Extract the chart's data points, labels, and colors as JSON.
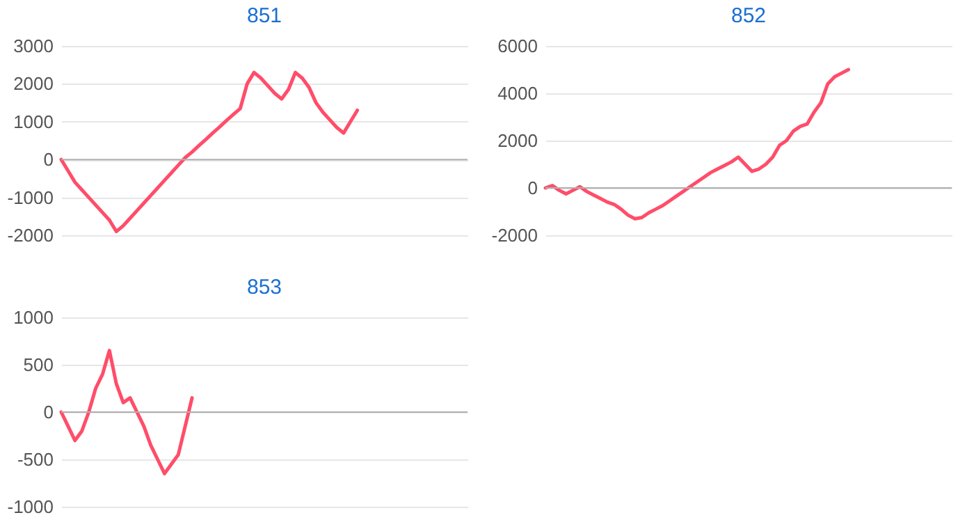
{
  "chart_data": [
    {
      "type": "line",
      "title": "851",
      "categories": [
        null,
        null,
        null,
        null,
        null,
        null,
        null,
        null,
        null,
        null,
        null,
        null,
        null,
        null,
        null,
        null,
        null,
        null,
        null,
        null,
        null,
        null,
        null,
        null,
        null,
        null,
        null,
        null,
        null,
        null,
        null,
        null,
        null,
        null,
        null,
        null,
        null,
        null,
        null,
        null,
        null,
        null,
        null,
        null,
        null,
        null,
        null,
        null,
        null,
        null,
        null,
        null,
        null,
        null,
        null,
        null,
        null,
        null,
        null,
        null
      ],
      "series": [
        {
          "color": "#ff4d6a",
          "values": [
            0,
            -300,
            -600,
            -800,
            -1000,
            -1200,
            -1400,
            -1600,
            -1900,
            -1750,
            -1550,
            -1350,
            -1150,
            -950,
            -750,
            -550,
            -350,
            -150,
            50,
            200,
            370,
            530,
            700,
            860,
            1030,
            1190,
            1350,
            2000,
            2300,
            2150,
            1950,
            1750,
            1600,
            1850,
            2300,
            2150,
            1900,
            1500,
            1250,
            1050,
            850,
            700,
            1000,
            1300,
            null,
            null,
            null,
            null,
            null,
            null,
            null,
            null,
            null,
            null,
            null,
            null,
            null,
            null,
            null,
            null
          ]
        }
      ],
      "ylim": [
        -2000,
        3000
      ],
      "yticks": [
        -2000,
        -1000,
        0,
        1000,
        2000,
        3000
      ],
      "grid": "y",
      "ref_lines": [
        {
          "axis": "y",
          "value": 0,
          "color": "#b0b0b0"
        }
      ],
      "tick_labels": "y",
      "marker": "none",
      "line_style": "solid"
    },
    {
      "type": "line",
      "title": "852",
      "categories": [
        null,
        null,
        null,
        null,
        null,
        null,
        null,
        null,
        null,
        null,
        null,
        null,
        null,
        null,
        null,
        null,
        null,
        null,
        null,
        null,
        null,
        null,
        null,
        null,
        null,
        null,
        null,
        null,
        null,
        null,
        null,
        null,
        null,
        null,
        null,
        null,
        null,
        null,
        null,
        null,
        null,
        null,
        null,
        null,
        null,
        null,
        null,
        null,
        null,
        null,
        null,
        null,
        null,
        null,
        null,
        null,
        null,
        null,
        null,
        null
      ],
      "series": [
        {
          "color": "#ff4d6a",
          "values": [
            0,
            100,
            -100,
            -250,
            -100,
            50,
            -150,
            -300,
            -450,
            -600,
            -700,
            -900,
            -1150,
            -1300,
            -1250,
            -1050,
            -900,
            -750,
            -550,
            -350,
            -150,
            50,
            250,
            450,
            650,
            800,
            950,
            1100,
            1300,
            1000,
            700,
            800,
            1000,
            1300,
            1800,
            2000,
            2400,
            2600,
            2700,
            3200,
            3600,
            4400,
            4700,
            4850,
            5000,
            null,
            null,
            null,
            null,
            null,
            null,
            null,
            null,
            null,
            null,
            null,
            null,
            null,
            null,
            null
          ]
        }
      ],
      "ylim": [
        -2000,
        6000
      ],
      "yticks": [
        -2000,
        0,
        2000,
        4000,
        6000
      ],
      "grid": "y",
      "ref_lines": [
        {
          "axis": "y",
          "value": 0,
          "color": "#b0b0b0"
        }
      ],
      "tick_labels": "y",
      "marker": "none",
      "line_style": "solid"
    },
    {
      "type": "line",
      "title": "853",
      "categories": [
        null,
        null,
        null,
        null,
        null,
        null,
        null,
        null,
        null,
        null,
        null,
        null,
        null,
        null,
        null,
        null,
        null,
        null,
        null,
        null,
        null,
        null,
        null,
        null,
        null,
        null,
        null,
        null,
        null,
        null,
        null,
        null,
        null,
        null,
        null,
        null,
        null,
        null,
        null,
        null,
        null,
        null,
        null,
        null,
        null,
        null,
        null,
        null,
        null,
        null,
        null,
        null,
        null,
        null,
        null,
        null,
        null,
        null,
        null,
        null
      ],
      "series": [
        {
          "color": "#ff4d6a",
          "values": [
            0,
            -150,
            -300,
            -200,
            0,
            250,
            400,
            650,
            300,
            100,
            150,
            0,
            -150,
            -350,
            -500,
            -650,
            -550,
            -450,
            -150,
            150,
            null,
            null,
            null,
            null,
            null,
            null,
            null,
            null,
            null,
            null,
            null,
            null,
            null,
            null,
            null,
            null,
            null,
            null,
            null,
            null,
            null,
            null,
            null,
            null,
            null,
            null,
            null,
            null,
            null,
            null,
            null,
            null,
            null,
            null,
            null,
            null,
            null,
            null,
            null,
            null
          ]
        }
      ],
      "ylim": [
        -1000,
        1000
      ],
      "yticks": [
        -1000,
        -500,
        0,
        500,
        1000
      ],
      "grid": "y",
      "ref_lines": [
        {
          "axis": "y",
          "value": 0,
          "color": "#b0b0b0"
        }
      ],
      "tick_labels": "y",
      "marker": "none",
      "line_style": "solid"
    }
  ]
}
